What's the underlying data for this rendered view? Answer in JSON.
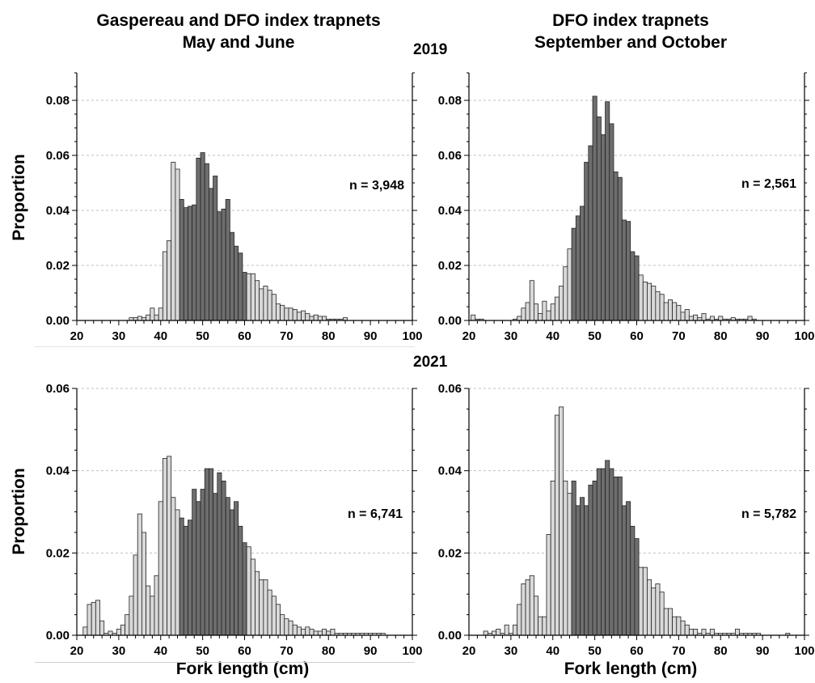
{
  "figure": {
    "left_title_line1": "Gaspereau and DFO index trapnets",
    "left_title_line2": "May and June",
    "right_title_line1": "DFO index trapnets",
    "right_title_line2": "September and October",
    "year_top": "2019",
    "year_bottom": "2021",
    "ylabel_top": "Proportion",
    "ylabel_bottom": "Proportion",
    "xlabel_left": "Fork length (cm)",
    "xlabel_right": "Fork length (cm)"
  },
  "colors": {
    "light_bar": "#d9d9d9",
    "dark_bar": "#6e6e6e",
    "bar_edge": "#222222",
    "grid": "#bfbfbf"
  },
  "chart_data": [
    {
      "type": "bar",
      "title": "Gaspereau and DFO index trapnets May and June 2019",
      "xlabel": "Fork length (cm)",
      "ylabel": "Proportion",
      "xlim": [
        20,
        100
      ],
      "ylim": [
        0,
        0.09
      ],
      "xticks": [
        "20",
        "30",
        "40",
        "50",
        "60",
        "70",
        "80",
        "90",
        "100"
      ],
      "yticks": [
        "0.00",
        "0.02",
        "0.04",
        "0.06",
        "0.08"
      ],
      "n_label": "n = 3,948",
      "dark_range": [
        45,
        60
      ],
      "x": [
        33,
        34,
        35,
        36,
        37,
        38,
        39,
        40,
        41,
        42,
        43,
        44,
        45,
        46,
        47,
        48,
        49,
        50,
        51,
        52,
        53,
        54,
        55,
        56,
        57,
        58,
        59,
        60,
        61,
        62,
        63,
        64,
        65,
        66,
        67,
        68,
        69,
        70,
        71,
        72,
        73,
        74,
        75,
        76,
        77,
        78,
        79,
        80,
        81,
        82,
        83,
        84
      ],
      "values": [
        0.001,
        0.001,
        0.0015,
        0.001,
        0.002,
        0.0045,
        0.002,
        0.0045,
        0.025,
        0.029,
        0.0575,
        0.055,
        0.044,
        0.041,
        0.0415,
        0.042,
        0.059,
        0.061,
        0.057,
        0.048,
        0.0525,
        0.0395,
        0.0405,
        0.044,
        0.032,
        0.027,
        0.0245,
        0.0175,
        0.017,
        0.017,
        0.0145,
        0.0115,
        0.0125,
        0.011,
        0.0095,
        0.006,
        0.0055,
        0.0045,
        0.0045,
        0.004,
        0.003,
        0.0035,
        0.0025,
        0.0015,
        0.002,
        0.0015,
        0.0015,
        0.0005,
        0.0005,
        0.0005,
        0.0005,
        0.001
      ]
    },
    {
      "type": "bar",
      "title": "DFO index trapnets September and October 2019",
      "xlabel": "Fork length (cm)",
      "ylabel": "Proportion",
      "xlim": [
        20,
        100
      ],
      "ylim": [
        0,
        0.09
      ],
      "xticks": [
        "20",
        "30",
        "40",
        "50",
        "60",
        "70",
        "80",
        "90",
        "100"
      ],
      "yticks": [
        "0.00",
        "0.02",
        "0.04",
        "0.06",
        "0.08"
      ],
      "n_label": "n = 2,561",
      "dark_range": [
        45,
        60
      ],
      "x": [
        21,
        22,
        23,
        31,
        32,
        33,
        34,
        35,
        36,
        37,
        38,
        39,
        40,
        41,
        42,
        43,
        44,
        45,
        46,
        47,
        48,
        49,
        50,
        51,
        52,
        53,
        54,
        55,
        56,
        57,
        58,
        59,
        60,
        61,
        62,
        63,
        64,
        65,
        66,
        67,
        68,
        69,
        70,
        71,
        72,
        73,
        74,
        75,
        76,
        77,
        78,
        79,
        80,
        81,
        82,
        83,
        84,
        85,
        86,
        87,
        88
      ],
      "values": [
        0.002,
        0.0005,
        0.0005,
        0.0005,
        0.0015,
        0.0045,
        0.0065,
        0.0145,
        0.006,
        0.0025,
        0.007,
        0.0035,
        0.006,
        0.0085,
        0.0125,
        0.0195,
        0.026,
        0.0335,
        0.038,
        0.0415,
        0.0575,
        0.0635,
        0.0815,
        0.074,
        0.0675,
        0.0795,
        0.0715,
        0.054,
        0.052,
        0.0365,
        0.036,
        0.025,
        0.0235,
        0.0165,
        0.014,
        0.0135,
        0.0125,
        0.0105,
        0.0095,
        0.0065,
        0.0075,
        0.0065,
        0.0055,
        0.003,
        0.004,
        0.0015,
        0.002,
        0.001,
        0.0025,
        0.0005,
        0.0015,
        0.0005,
        0.0015,
        0.0005,
        0.0005,
        0.001,
        0.0005,
        0.0005,
        0.0005,
        0.0015,
        0.0005
      ]
    },
    {
      "type": "bar",
      "title": "Gaspereau and DFO index trapnets May and June 2021",
      "xlabel": "Fork length (cm)",
      "ylabel": "Proportion",
      "xlim": [
        20,
        100
      ],
      "ylim": [
        0,
        0.06
      ],
      "xticks": [
        "20",
        "30",
        "40",
        "50",
        "60",
        "70",
        "80",
        "90",
        "100"
      ],
      "yticks": [
        "0.00",
        "0.02",
        "0.04",
        "0.06"
      ],
      "n_label": "n = 6,741",
      "dark_range": [
        45,
        60
      ],
      "x": [
        22,
        23,
        24,
        25,
        26,
        27,
        28,
        29,
        30,
        31,
        32,
        33,
        34,
        35,
        36,
        37,
        38,
        39,
        40,
        41,
        42,
        43,
        44,
        45,
        46,
        47,
        48,
        49,
        50,
        51,
        52,
        53,
        54,
        55,
        56,
        57,
        58,
        59,
        60,
        61,
        62,
        63,
        64,
        65,
        66,
        67,
        68,
        69,
        70,
        71,
        72,
        73,
        74,
        75,
        76,
        77,
        78,
        79,
        80,
        81,
        82,
        83,
        84,
        85,
        86,
        87,
        88,
        89,
        90,
        91,
        92,
        93
      ],
      "values": [
        0.002,
        0.0075,
        0.008,
        0.0085,
        0.0035,
        0.0005,
        0.001,
        0.0005,
        0.0015,
        0.0025,
        0.005,
        0.0095,
        0.0195,
        0.0295,
        0.025,
        0.012,
        0.0095,
        0.0145,
        0.0325,
        0.043,
        0.0435,
        0.0335,
        0.0305,
        0.0285,
        0.0265,
        0.028,
        0.0355,
        0.0325,
        0.0355,
        0.0405,
        0.0405,
        0.0345,
        0.0395,
        0.0375,
        0.0335,
        0.0305,
        0.0325,
        0.0265,
        0.0225,
        0.0215,
        0.0185,
        0.0155,
        0.0135,
        0.0135,
        0.011,
        0.0095,
        0.0075,
        0.005,
        0.004,
        0.0035,
        0.0025,
        0.002,
        0.0015,
        0.002,
        0.0015,
        0.001,
        0.001,
        0.0015,
        0.001,
        0.0015,
        0.0005,
        0.0005,
        0.0005,
        0.0005,
        0.0005,
        0.0005,
        0.0005,
        0.0005,
        0.0005,
        0.0005,
        0.0005,
        0.0005
      ]
    },
    {
      "type": "bar",
      "title": "DFO index trapnets September and October 2021",
      "xlabel": "Fork length (cm)",
      "ylabel": "Proportion",
      "xlim": [
        20,
        100
      ],
      "ylim": [
        0,
        0.06
      ],
      "xticks": [
        "20",
        "30",
        "40",
        "50",
        "60",
        "70",
        "80",
        "90",
        "100"
      ],
      "yticks": [
        "0.00",
        "0.02",
        "0.04",
        "0.06"
      ],
      "n_label": "n = 5,782",
      "dark_range": [
        45,
        60
      ],
      "x": [
        24,
        25,
        26,
        27,
        28,
        29,
        30,
        31,
        32,
        33,
        34,
        35,
        36,
        37,
        38,
        39,
        40,
        41,
        42,
        43,
        44,
        45,
        46,
        47,
        48,
        49,
        50,
        51,
        52,
        53,
        54,
        55,
        56,
        57,
        58,
        59,
        60,
        61,
        62,
        63,
        64,
        65,
        66,
        67,
        68,
        69,
        70,
        71,
        72,
        73,
        74,
        75,
        76,
        77,
        78,
        79,
        80,
        81,
        82,
        83,
        84,
        85,
        86,
        87,
        88,
        89,
        96
      ],
      "values": [
        0.001,
        0.0005,
        0.001,
        0.0015,
        0.0005,
        0.0025,
        0.0005,
        0.0025,
        0.0075,
        0.0125,
        0.0135,
        0.0145,
        0.0095,
        0.0045,
        0.0045,
        0.0245,
        0.0375,
        0.0535,
        0.0555,
        0.0375,
        0.0345,
        0.0375,
        0.0315,
        0.0335,
        0.0315,
        0.0365,
        0.0375,
        0.0405,
        0.0405,
        0.0425,
        0.0405,
        0.0385,
        0.0385,
        0.0315,
        0.0325,
        0.0265,
        0.0235,
        0.0165,
        0.0165,
        0.0135,
        0.0115,
        0.0125,
        0.0105,
        0.0065,
        0.0065,
        0.0045,
        0.0045,
        0.0035,
        0.0025,
        0.0015,
        0.0015,
        0.0005,
        0.0015,
        0.0005,
        0.0015,
        0.0005,
        0.0005,
        0.0005,
        0.0005,
        0.0005,
        0.0015,
        0.0005,
        0.0005,
        0.0005,
        0.0005,
        0.0005,
        0.0005
      ]
    }
  ]
}
